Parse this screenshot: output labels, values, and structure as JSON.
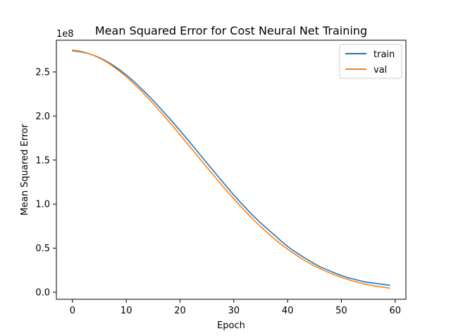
{
  "chart_data": {
    "type": "line",
    "title": "Mean Squared Error for Cost Neural Net Training",
    "xlabel": "Epoch",
    "ylabel": "Mean Squared Error",
    "y_offset_label": "1e8",
    "xlim": [
      -3,
      62
    ],
    "ylim": [
      -8000000,
      286000000
    ],
    "xticks": [
      0,
      10,
      20,
      30,
      40,
      50,
      60
    ],
    "xtick_labels": [
      "0",
      "10",
      "20",
      "30",
      "40",
      "50",
      "60"
    ],
    "yticks": [
      0,
      50000000,
      100000000,
      150000000,
      200000000,
      250000000
    ],
    "ytick_labels": [
      "0.0",
      "0.5",
      "1.0",
      "1.5",
      "2.0",
      "2.5"
    ],
    "grid": false,
    "legend_position": "top-right",
    "colors": {
      "train": "#1f77b4",
      "val": "#ff7f0e",
      "axis": "#000000"
    },
    "series": [
      {
        "name": "train",
        "x": [
          0,
          1,
          2,
          3,
          4,
          5,
          6,
          7,
          8,
          9,
          10,
          11,
          12,
          13,
          14,
          15,
          16,
          17,
          18,
          19,
          20,
          21,
          22,
          23,
          24,
          25,
          26,
          27,
          28,
          29,
          30,
          31,
          32,
          33,
          34,
          35,
          36,
          37,
          38,
          39,
          40,
          41,
          42,
          43,
          44,
          45,
          46,
          47,
          48,
          49,
          50,
          51,
          52,
          53,
          54,
          55,
          56,
          57,
          58,
          59
        ],
        "values": [
          274000000,
          273300000,
          272300000,
          270800000,
          268800000,
          266300000,
          263200000,
          259700000,
          255700000,
          251400000,
          246500000,
          241400000,
          235800000,
          230000000,
          223900000,
          217600000,
          211000000,
          204200000,
          197500000,
          190500000,
          183400000,
          176100000,
          168900000,
          161500000,
          154000000,
          146600000,
          139300000,
          132000000,
          124700000,
          117500000,
          110200000,
          103500000,
          97000000,
          90500000,
          84500000,
          78600000,
          73200000,
          67800000,
          62500000,
          57000000,
          52000000,
          47500000,
          43500000,
          39600000,
          36000000,
          32300000,
          29000000,
          26400000,
          23800000,
          21300000,
          19000000,
          16900000,
          15300000,
          13700000,
          12200000,
          11200000,
          10400000,
          9600000,
          8700000,
          8000000
        ]
      },
      {
        "name": "val",
        "x": [
          0,
          1,
          2,
          3,
          4,
          5,
          6,
          7,
          8,
          9,
          10,
          11,
          12,
          13,
          14,
          15,
          16,
          17,
          18,
          19,
          20,
          21,
          22,
          23,
          24,
          25,
          26,
          27,
          28,
          29,
          30,
          31,
          32,
          33,
          34,
          35,
          36,
          37,
          38,
          39,
          40,
          41,
          42,
          43,
          44,
          45,
          46,
          47,
          48,
          49,
          50,
          51,
          52,
          53,
          54,
          55,
          56,
          57,
          58,
          59
        ],
        "values": [
          274800000,
          274000000,
          272800000,
          271000000,
          268700000,
          265800000,
          262500000,
          258700000,
          254300000,
          249600000,
          244500000,
          239000000,
          233200000,
          227100000,
          220700000,
          214100000,
          207300000,
          200300000,
          193200000,
          186000000,
          178700000,
          171300000,
          163900000,
          156500000,
          149100000,
          141700000,
          134400000,
          127100000,
          119900000,
          112900000,
          106000000,
          99300000,
          92700000,
          86400000,
          80300000,
          74400000,
          68800000,
          63400000,
          58300000,
          53400000,
          48900000,
          44600000,
          40500000,
          36700000,
          33200000,
          29900000,
          26900000,
          24100000,
          21500000,
          19100000,
          16900000,
          14900000,
          13000000,
          11300000,
          9800000,
          8500000,
          7400000,
          6400000,
          5500000,
          4700000
        ]
      }
    ]
  }
}
